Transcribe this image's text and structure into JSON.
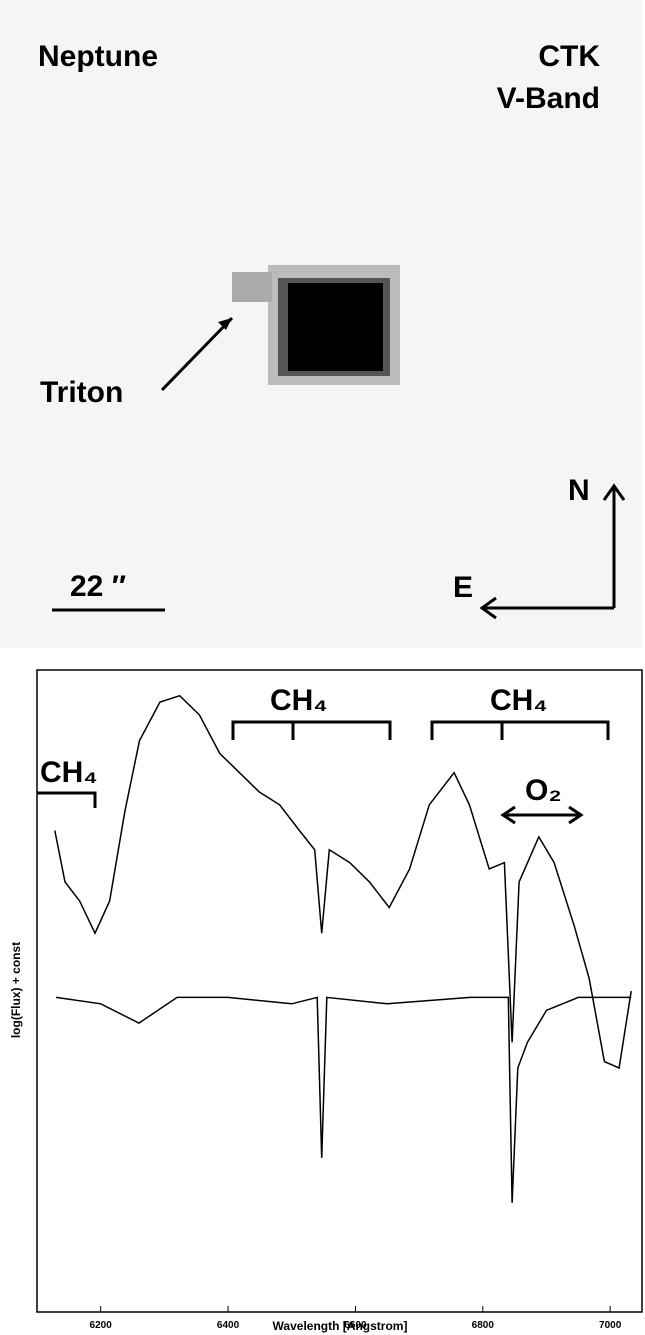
{
  "image": {
    "title": "Neptune",
    "telescope": "CTK",
    "band": "V-Band",
    "moon": "Triton",
    "scale": "22 ″",
    "north": "N",
    "east": "E"
  },
  "chart_data": {
    "type": "line",
    "x_label": "Wavelength [Angstrom]",
    "y_label": "log(Flux) + const",
    "xlim": [
      6100,
      7050
    ],
    "xticks": [
      6200,
      6400,
      6600,
      6800,
      7000
    ],
    "ylim": [
      0,
      100
    ],
    "annotations": [
      "CH₄",
      "CH₄",
      "CH₄",
      "O₂"
    ],
    "series": [
      {
        "color": "#000000",
        "x": [
          6128,
          6144,
          6167,
          6191,
          6214,
          6238,
          6261,
          6293,
          6324,
          6355,
          6387,
          6418,
          6449,
          6481,
          6512,
          6536,
          6547,
          6559,
          6591,
          6622,
          6653,
          6685,
          6716,
          6755,
          6779,
          6810,
          6834,
          6846,
          6857,
          6888,
          6912,
          6944,
          6967,
          6991,
          7014,
          7033
        ],
        "values": [
          75,
          67,
          64,
          59,
          64,
          78,
          89,
          95,
          96,
          93,
          87,
          84,
          81,
          79,
          75,
          72,
          59,
          72,
          70,
          67,
          63,
          69,
          79,
          84,
          79,
          69,
          70,
          42,
          67,
          74,
          70,
          60,
          52,
          39,
          38,
          50
        ]
      },
      {
        "color": "#000000",
        "x": [
          6130,
          6200,
          6260,
          6320,
          6400,
          6500,
          6540,
          6547,
          6555,
          6650,
          6780,
          6840,
          6846,
          6855,
          6870,
          6900,
          6950,
          7000,
          7033
        ],
        "values": [
          49,
          48,
          45,
          49,
          49,
          48,
          49,
          24,
          49,
          48,
          49,
          49,
          17,
          38,
          42,
          47,
          49,
          49,
          49
        ]
      }
    ]
  }
}
